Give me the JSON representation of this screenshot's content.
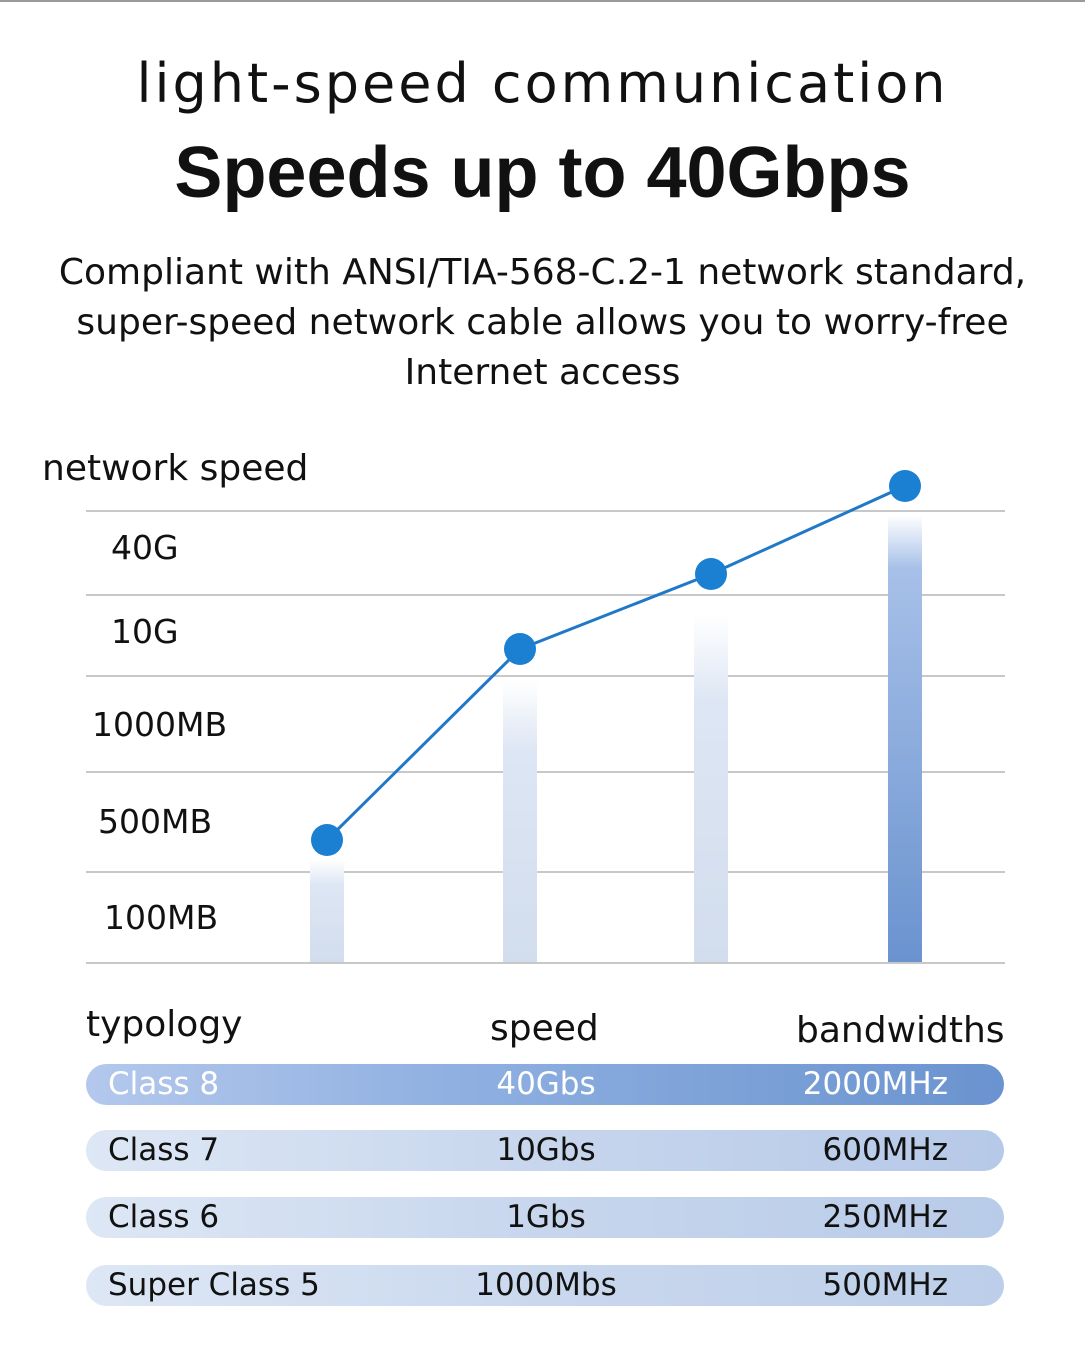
{
  "header": {
    "kicker": "light-speed communication",
    "headline": "Speeds up to 40Gbps",
    "description_lines": [
      "Compliant with ANSI/TIA-568-C.2-1 network standard,",
      "super-speed network cable allows you to worry-free",
      "Internet access"
    ]
  },
  "chart_data": {
    "type": "line",
    "ylabel": "network speed",
    "y_ticks": [
      "40G",
      "10G",
      "1000MB",
      "500MB",
      "100MB"
    ],
    "categories": [
      "Super Class 5",
      "Class 6",
      "Class 7",
      "Class 8"
    ],
    "series": [
      {
        "values": [
          "1000Mbs",
          "1Gbs",
          "10Gbs",
          "40Gbs"
        ]
      }
    ],
    "grid": true,
    "colors": {
      "line": "#1f78c8",
      "point": "#1b7fd2",
      "bar_light": "#d8e2f2",
      "bar_dark": "#6f98d0",
      "grid": "#c8c8c8"
    }
  },
  "table": {
    "headers": {
      "typology": "typology",
      "speed": "speed",
      "bandwidths": "bandwidths"
    },
    "rows": [
      {
        "typology": "Class 8",
        "speed": "40Gbs",
        "bandwidth": "2000MHz"
      },
      {
        "typology": "Class 7",
        "speed": "10Gbs",
        "bandwidth": "600MHz"
      },
      {
        "typology": "Class 6",
        "speed": "1Gbs",
        "bandwidth": "250MHz"
      },
      {
        "typology": "Super Class 5",
        "speed": "1000Mbs",
        "bandwidth": "500MHz"
      }
    ],
    "colors": {
      "row1_start": "#b4c8ec",
      "row1_end": "#6a93cf",
      "row_light": "#d5e1f2",
      "row_mid": "#bccee9"
    }
  }
}
